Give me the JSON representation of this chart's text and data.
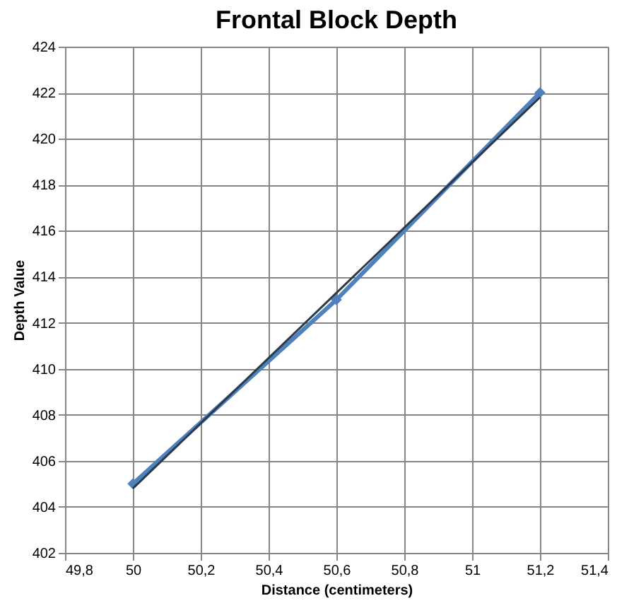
{
  "chart_data": {
    "type": "line",
    "title": "Frontal Block Depth",
    "xlabel": "Distance (centimeters)",
    "ylabel": "Depth Value",
    "x": [
      50,
      50.6,
      51.2
    ],
    "series": [
      {
        "color": "#4f81bd",
        "values": [
          405,
          413,
          422
        ],
        "marker": "diamond",
        "line_style": "solid"
      },
      {
        "type": "line",
        "color": "#2b3a4a",
        "x": [
          50,
          51.2
        ],
        "values": [
          404.8,
          421.8
        ],
        "marker": "none",
        "line_style": "solid"
      }
    ],
    "xlim": [
      49.8,
      51.4
    ],
    "xticks": [
      {
        "value": 49.8,
        "label": "49,8"
      },
      {
        "value": 50,
        "label": "50"
      },
      {
        "value": 50.2,
        "label": "50,2"
      },
      {
        "value": 50.4,
        "label": "50,4"
      },
      {
        "value": 50.6,
        "label": "50,6"
      },
      {
        "value": 50.8,
        "label": "50,8"
      },
      {
        "value": 51,
        "label": "51"
      },
      {
        "value": 51.2,
        "label": "51,2"
      },
      {
        "value": 51.4,
        "label": "51,4"
      }
    ],
    "ylim": [
      402,
      424
    ],
    "yticks": [
      402,
      404,
      406,
      408,
      410,
      412,
      414,
      416,
      418,
      420,
      422,
      424
    ],
    "grid": true
  }
}
